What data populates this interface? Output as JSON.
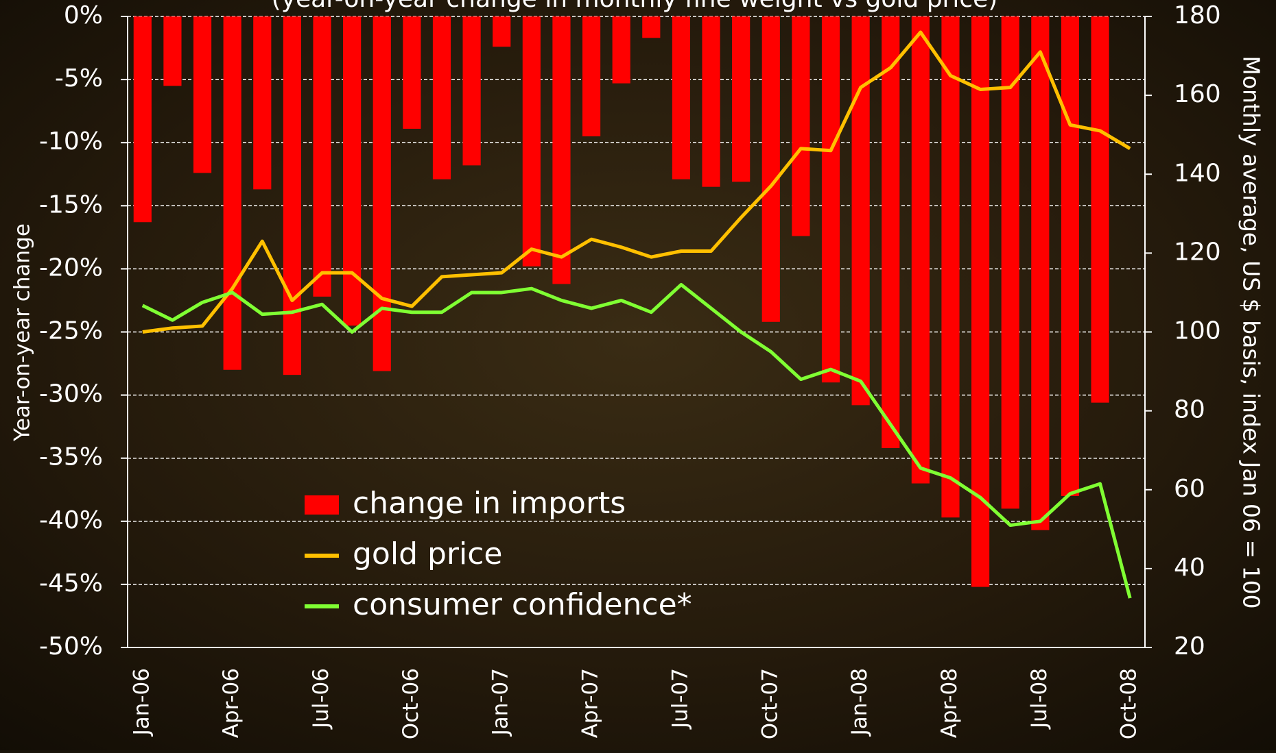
{
  "chart_data": {
    "type": "bar-line",
    "title": "(year-on-year change in monthly fine weight vs gold price)",
    "y_label": "Year-on-year change",
    "y2_label": "Monthly average, US $ basis, index Jan 06 = 100",
    "categories": [
      "Jan-06",
      null,
      null,
      "Apr-06",
      null,
      null,
      "Jul-06",
      null,
      null,
      "Oct-06",
      null,
      null,
      "Jan-07",
      null,
      null,
      "Apr-07",
      null,
      null,
      "Jul-07",
      null,
      null,
      "Oct-07",
      null,
      null,
      "Jan-08",
      null,
      null,
      "Apr-08",
      null,
      null,
      "Jul-08",
      null,
      null,
      "Oct-08"
    ],
    "series": [
      {
        "name": "change in imports",
        "color": "#ff0000",
        "type": "bar",
        "values": [
          -16.3,
          -5.5,
          -12.4,
          -28.0,
          -13.7,
          -28.4,
          -22.2,
          -24.5,
          -28.1,
          -8.9,
          -12.9,
          -11.8,
          -2.4,
          -19.8,
          -21.2,
          -9.5,
          -5.3,
          -1.7,
          -12.9,
          -13.5,
          -13.1,
          -24.2,
          -17.4,
          -29.0,
          -30.8,
          -34.2,
          -37.0,
          -39.7,
          -45.2,
          -39.0,
          -40.7,
          -38.0,
          -30.6,
          null
        ]
      },
      {
        "name": "gold price",
        "color": "#ffc000",
        "type": "line",
        "axis": "y2",
        "values": [
          100,
          101,
          101.5,
          111,
          123,
          108,
          115,
          115,
          108.5,
          106.5,
          114,
          114.5,
          115,
          121,
          119,
          123.5,
          121.5,
          119,
          120.5,
          120.5,
          129,
          137,
          146.5,
          146,
          162,
          167,
          176,
          165,
          161.5,
          162,
          171,
          152.5,
          151,
          146.5
        ]
      },
      {
        "name": "consumer confidence*",
        "color": "#80ff33",
        "type": "line",
        "axis": "y2",
        "values": [
          106.7,
          103,
          107.5,
          110,
          104.5,
          105,
          107,
          100,
          106,
          105,
          105,
          110,
          110,
          111,
          108,
          106,
          108,
          105,
          112,
          106,
          100,
          95,
          88,
          90.5,
          87.5,
          76.5,
          65.5,
          63,
          58,
          51,
          52,
          59,
          61.5,
          32.5
        ]
      }
    ],
    "ylim": [
      -50,
      0
    ],
    "yticks": [
      {
        "value": 0,
        "label": "0%"
      },
      {
        "value": -5,
        "label": "-5%"
      },
      {
        "value": -10,
        "label": "-10%"
      },
      {
        "value": -15,
        "label": "-15%"
      },
      {
        "value": -20,
        "label": "-20%"
      },
      {
        "value": -25,
        "label": "-25%"
      },
      {
        "value": -30,
        "label": "-30%"
      },
      {
        "value": -35,
        "label": "-35%"
      },
      {
        "value": -40,
        "label": "-40%"
      },
      {
        "value": -45,
        "label": "-45%"
      },
      {
        "value": -50,
        "label": "-50%"
      }
    ],
    "y2lim": [
      20,
      180
    ],
    "y2ticks": [
      20,
      40,
      60,
      80,
      100,
      120,
      140,
      160,
      180
    ],
    "grid": true
  }
}
